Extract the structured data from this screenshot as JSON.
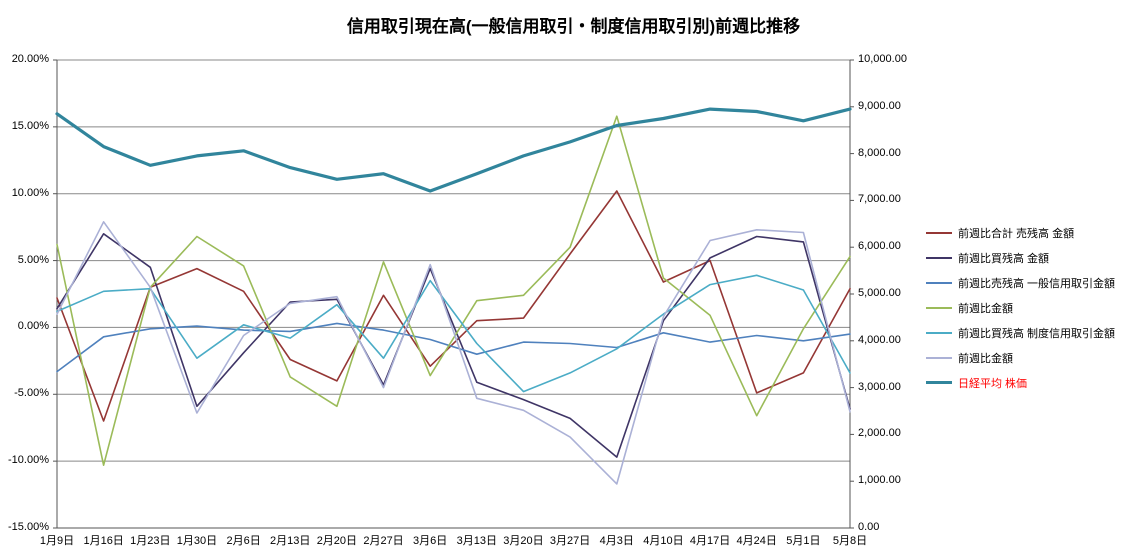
{
  "chart_data": {
    "type": "line",
    "title": "信用取引現在高(一般信用取引・制度信用取引別)前週比推移",
    "legend_position": "right",
    "grid": true,
    "grid_color": "#898989",
    "axis_color": "#555555",
    "background": "#FFFFFF",
    "categories": [
      "1月9日",
      "1月16日",
      "1月23日",
      "1月30日",
      "2月6日",
      "2月13日",
      "2月20日",
      "2月27日",
      "3月6日",
      "3月13日",
      "3月20日",
      "3月27日",
      "4月3日",
      "4月10日",
      "4月17日",
      "4月24日",
      "5月1日",
      "5月8日"
    ],
    "left_axis": {
      "min": -15,
      "max": 20,
      "unit": "%",
      "ticks": [
        {
          "value": 20,
          "label": "20.00%"
        },
        {
          "value": 15,
          "label": "15.00%"
        },
        {
          "value": 10,
          "label": "10.00%"
        },
        {
          "value": 5,
          "label": "5.00%"
        },
        {
          "value": 0,
          "label": "0.00%"
        },
        {
          "value": -5,
          "label": "-5.00%"
        },
        {
          "value": -10,
          "label": "-10.00%"
        },
        {
          "value": -15,
          "label": "-15.00%"
        }
      ]
    },
    "right_axis": {
      "min": 0,
      "max": 10000,
      "ticks": [
        {
          "value": 10000,
          "label": "10,000.00"
        },
        {
          "value": 9000,
          "label": "9,000.00"
        },
        {
          "value": 8000,
          "label": "8,000.00"
        },
        {
          "value": 7000,
          "label": "7,000.00"
        },
        {
          "value": 6000,
          "label": "6,000.00"
        },
        {
          "value": 5000,
          "label": "5,000.00"
        },
        {
          "value": 4000,
          "label": "4,000.00"
        },
        {
          "value": 3000,
          "label": "3,000.00"
        },
        {
          "value": 2000,
          "label": "2,000.00"
        },
        {
          "value": 1000,
          "label": "1,000.00"
        },
        {
          "value": 0,
          "label": "0.00"
        }
      ]
    },
    "series": [
      {
        "name": "前週比合計 売残高 金額",
        "color": "#953735",
        "axis": "left",
        "width": 1.6,
        "values": [
          2.2,
          -7.0,
          3.0,
          4.4,
          2.7,
          -2.4,
          -4.0,
          2.4,
          -2.9,
          0.5,
          0.7,
          5.5,
          10.2,
          3.4,
          5.0,
          -4.9,
          -3.4,
          2.9
        ]
      },
      {
        "name": "前週比買残高 金額",
        "color": "#3F3566",
        "axis": "left",
        "width": 1.6,
        "values": [
          1.4,
          7.0,
          4.5,
          -5.9,
          -1.9,
          1.9,
          2.1,
          -4.3,
          4.4,
          -4.1,
          -5.4,
          -6.8,
          -9.7,
          0.5,
          5.2,
          6.8,
          6.4,
          -6.1
        ]
      },
      {
        "name": "前週比売残高 一般信用取引金額",
        "color": "#4F81BD",
        "axis": "left",
        "width": 1.6,
        "values": [
          -3.3,
          -0.7,
          -0.1,
          0.1,
          -0.2,
          -0.3,
          0.3,
          -0.2,
          -0.9,
          -2.0,
          -1.1,
          -1.2,
          -1.5,
          -0.4,
          -1.1,
          -0.6,
          -1.0,
          -0.5
        ]
      },
      {
        "name": "前週比金額",
        "color": "#9BBB59",
        "axis": "left",
        "width": 1.6,
        "values": [
          6.2,
          -10.3,
          3.0,
          6.8,
          4.6,
          -3.7,
          -5.9,
          4.9,
          -3.6,
          2.0,
          2.4,
          6.0,
          15.8,
          3.7,
          0.9,
          -6.6,
          -0.1,
          5.3
        ]
      },
      {
        "name": "前週比買残高 制度信用取引金額",
        "color": "#4BACC6",
        "axis": "left",
        "width": 1.6,
        "values": [
          1.2,
          2.7,
          2.9,
          -2.3,
          0.2,
          -0.8,
          1.7,
          -2.3,
          3.5,
          -1.2,
          -4.8,
          -3.4,
          -1.6,
          1.0,
          3.2,
          3.9,
          2.8,
          -3.4
        ]
      },
      {
        "name": "前週比金額",
        "color": "#ABB1D6",
        "axis": "left",
        "width": 1.6,
        "values": [
          1.0,
          7.9,
          3.0,
          -6.4,
          -0.6,
          1.8,
          2.3,
          -4.5,
          4.7,
          -5.3,
          -6.2,
          -8.2,
          -11.7,
          0.8,
          6.5,
          7.3,
          7.1,
          -6.3
        ]
      },
      {
        "name": "日経平均 株価",
        "color": "#31859C",
        "axis": "right",
        "width": 3.2,
        "label_color": "#FF0000",
        "values": [
          8850,
          8150,
          7750,
          7950,
          8060,
          7700,
          7450,
          7570,
          7200,
          7570,
          7950,
          8250,
          8600,
          8750,
          8950,
          8900,
          8700,
          8950
        ]
      }
    ]
  }
}
